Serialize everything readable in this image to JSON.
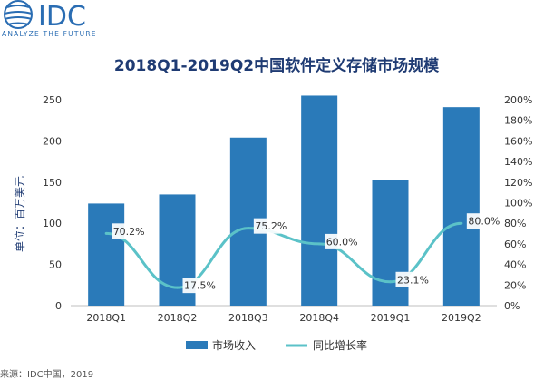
{
  "logo": {
    "text": "IDC",
    "tagline": "ANALYZE THE FUTURE"
  },
  "colors": {
    "bar": "#2a7ab9",
    "line": "#5bc2c8",
    "text": "#333333",
    "title": "#1f3b73"
  },
  "chart_data": {
    "type": "bar",
    "title": "2018Q1-2019Q2中国软件定义存储市场规模",
    "categories": [
      "2018Q1",
      "2018Q2",
      "2018Q3",
      "2018Q4",
      "2019Q1",
      "2019Q2"
    ],
    "series": [
      {
        "name": "市场收入",
        "type": "bar",
        "axis": "left",
        "values": [
          124,
          135,
          204,
          255,
          152,
          241
        ]
      },
      {
        "name": "同比增长率",
        "type": "line",
        "axis": "right",
        "values": [
          70.2,
          17.5,
          75.2,
          60.0,
          23.1,
          80.0
        ],
        "labels": [
          "70.2%",
          "17.5%",
          "75.2%",
          "60.0%",
          "23.1%",
          "80.0%"
        ]
      }
    ],
    "ylabel": "单位：百万美元",
    "ylim": [
      0,
      250
    ],
    "yticks": [
      "0",
      "50",
      "100",
      "150",
      "200",
      "250"
    ],
    "y2lim": [
      0,
      200
    ],
    "y2ticks": [
      "0%",
      "20%",
      "40%",
      "60%",
      "80%",
      "100%",
      "120%",
      "140%",
      "160%",
      "180%",
      "200%"
    ],
    "legend": {
      "position": "bottom",
      "items": [
        "市场收入",
        "同比增长率"
      ]
    },
    "grid": false
  },
  "source": "来源：IDC中国，2019"
}
